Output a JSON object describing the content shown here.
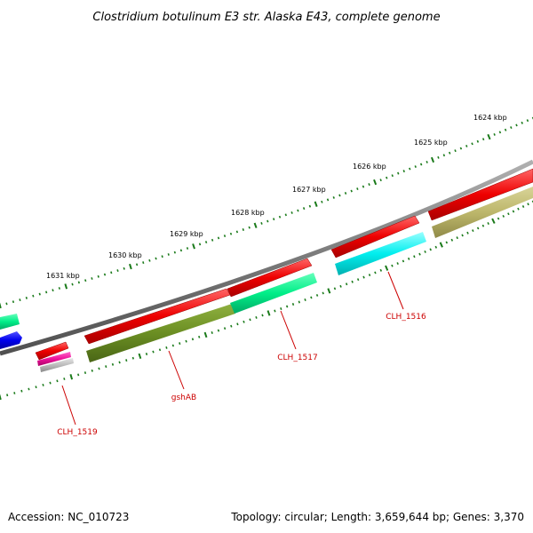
{
  "title": "Clostridium botulinum E3 str. Alaska E43, complete genome",
  "footer": {
    "accession": "Accession: NC_010723",
    "topology": "Topology: circular; Length: 3,659,644 bp; Genes: 3,370"
  },
  "kbp_labels": [
    "1631 kbp",
    "1630 kbp",
    "1629 kbp",
    "1628 kbp",
    "1627 kbp",
    "1626 kbp",
    "1625 kbp",
    "1624 kbp"
  ],
  "gene_labels": [
    "CLH_1519",
    "gshAB",
    "CLH_1517",
    "CLH_1516"
  ],
  "colors": {
    "backbone": "#808080",
    "tick": "#1a7a1a",
    "gene": "#ee0000",
    "cds_olive": "#6b8e23",
    "cds_spring": "#00ee88",
    "cds_cyan": "#00eeee",
    "cds_khaki": "#bdb76b",
    "cds_blue": "#0000ee",
    "cds_magenta": "#ee1199",
    "cds_gray": "#bbbbbb",
    "label": "#cc0000"
  }
}
